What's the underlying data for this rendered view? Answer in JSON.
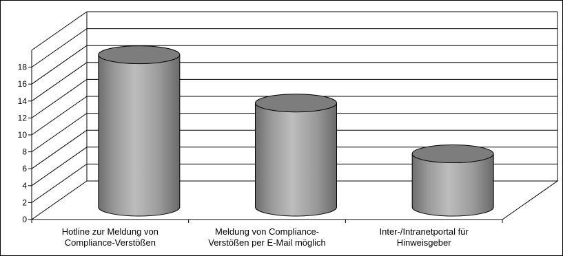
{
  "chart_data": {
    "type": "bar",
    "bar_shape": "cylinder",
    "three_d": true,
    "categories": [
      [
        "Hotline zur Meldung von",
        "Compliance-Verstößen"
      ],
      [
        "Meldung von Compliance-",
        "Verstößen per E-Mail möglich"
      ],
      [
        "Inter-/Intranetportal für",
        "Hinweisgeber"
      ]
    ],
    "values": [
      18,
      12.3,
      6.3
    ],
    "yticks": [
      0,
      2,
      4,
      6,
      8,
      10,
      12,
      14,
      16,
      18
    ],
    "ylim": [
      0,
      20
    ],
    "grid": true,
    "legend": "none",
    "colors": {
      "bar_fill": "#9a9a9a",
      "bar_top": "#7d7d7d",
      "bar_edge": "#000000",
      "grid": "#000000"
    }
  }
}
